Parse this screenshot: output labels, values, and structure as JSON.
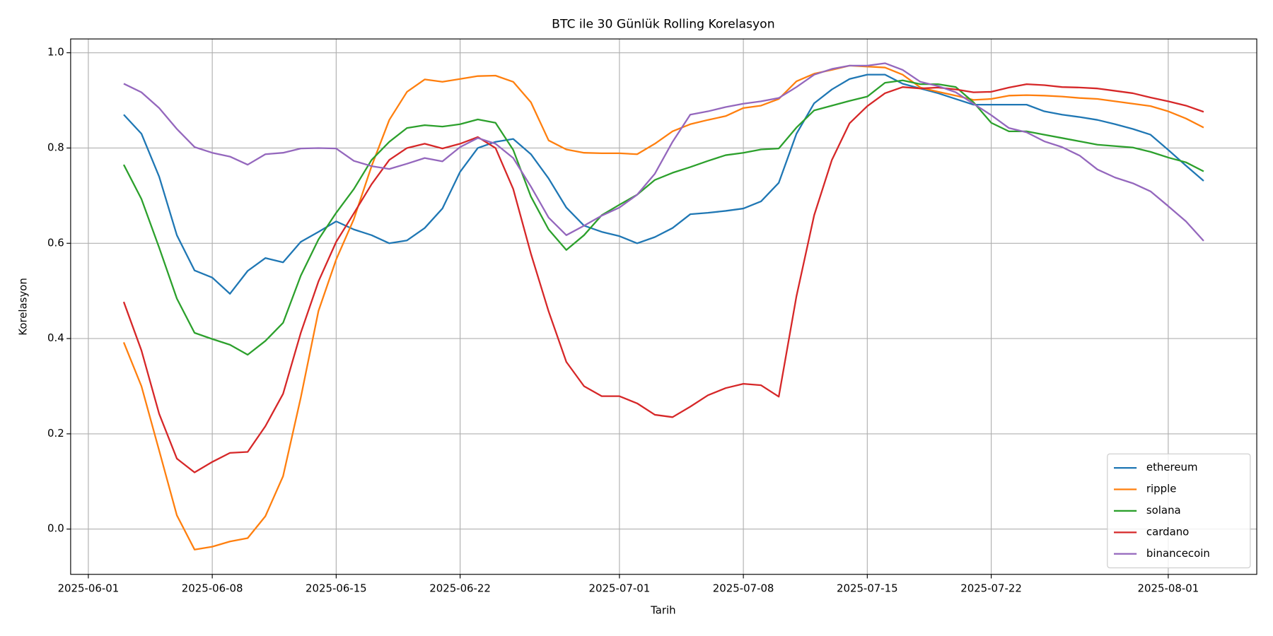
{
  "chart_data": {
    "type": "line",
    "title": "BTC ile 30 Günlük Rolling Korelasyon",
    "x_label": "Tarih",
    "y_label": "Korelasyon",
    "x": [
      "2025-06-03",
      "2025-06-04",
      "2025-06-05",
      "2025-06-06",
      "2025-06-07",
      "2025-06-08",
      "2025-06-09",
      "2025-06-10",
      "2025-06-11",
      "2025-06-12",
      "2025-06-13",
      "2025-06-14",
      "2025-06-15",
      "2025-06-16",
      "2025-06-17",
      "2025-06-18",
      "2025-06-19",
      "2025-06-20",
      "2025-06-21",
      "2025-06-22",
      "2025-06-23",
      "2025-06-24",
      "2025-06-25",
      "2025-06-26",
      "2025-06-27",
      "2025-06-28",
      "2025-06-29",
      "2025-06-30",
      "2025-07-01",
      "2025-07-02",
      "2025-07-03",
      "2025-07-04",
      "2025-07-05",
      "2025-07-06",
      "2025-07-07",
      "2025-07-08",
      "2025-07-09",
      "2025-07-10",
      "2025-07-11",
      "2025-07-12",
      "2025-07-13",
      "2025-07-14",
      "2025-07-15",
      "2025-07-16",
      "2025-07-17",
      "2025-07-18",
      "2025-07-19",
      "2025-07-20",
      "2025-07-21",
      "2025-07-22",
      "2025-07-23",
      "2025-07-24",
      "2025-07-25",
      "2025-07-26",
      "2025-07-27",
      "2025-07-28",
      "2025-07-29",
      "2025-07-30",
      "2025-07-31",
      "2025-08-01",
      "2025-08-02",
      "2025-08-03"
    ],
    "series": [
      {
        "name": "ethereum",
        "color": "#1f77b4",
        "values": [
          0.87,
          0.83,
          0.74,
          0.617,
          0.543,
          0.528,
          0.494,
          0.542,
          0.569,
          0.56,
          0.603,
          0.624,
          0.646,
          0.629,
          0.617,
          0.6,
          0.606,
          0.632,
          0.673,
          0.75,
          0.8,
          0.813,
          0.819,
          0.787,
          0.736,
          0.675,
          0.637,
          0.624,
          0.615,
          0.6,
          0.613,
          0.632,
          0.661,
          0.664,
          0.668,
          0.673,
          0.688,
          0.727,
          0.83,
          0.894,
          0.923,
          0.945,
          0.954,
          0.954,
          0.935,
          0.925,
          0.915,
          0.903,
          0.891,
          0.891,
          0.891,
          0.891,
          0.877,
          0.87,
          0.865,
          0.859,
          0.85,
          0.84,
          0.828,
          0.796,
          0.763,
          0.731
        ]
      },
      {
        "name": "ripple",
        "color": "#ff7f0e",
        "values": [
          0.392,
          0.3,
          0.165,
          0.029,
          -0.043,
          -0.037,
          -0.026,
          -0.019,
          0.027,
          0.111,
          0.276,
          0.458,
          0.566,
          0.651,
          0.762,
          0.859,
          0.918,
          0.944,
          0.939,
          0.945,
          0.951,
          0.952,
          0.939,
          0.896,
          0.816,
          0.797,
          0.79,
          0.789,
          0.789,
          0.787,
          0.809,
          0.835,
          0.85,
          0.859,
          0.867,
          0.884,
          0.889,
          0.903,
          0.94,
          0.956,
          0.964,
          0.973,
          0.971,
          0.969,
          0.954,
          0.927,
          0.918,
          0.91,
          0.901,
          0.903,
          0.91,
          0.911,
          0.91,
          0.908,
          0.905,
          0.903,
          0.898,
          0.893,
          0.888,
          0.877,
          0.862,
          0.843
        ]
      },
      {
        "name": "solana",
        "color": "#2ca02c",
        "values": [
          0.765,
          0.693,
          0.591,
          0.484,
          0.412,
          0.399,
          0.387,
          0.366,
          0.395,
          0.433,
          0.532,
          0.608,
          0.664,
          0.714,
          0.775,
          0.813,
          0.842,
          0.848,
          0.845,
          0.85,
          0.86,
          0.853,
          0.796,
          0.698,
          0.629,
          0.586,
          0.617,
          0.659,
          0.681,
          0.702,
          0.733,
          0.748,
          0.76,
          0.773,
          0.785,
          0.79,
          0.797,
          0.799,
          0.843,
          0.879,
          0.889,
          0.899,
          0.908,
          0.937,
          0.942,
          0.934,
          0.934,
          0.928,
          0.896,
          0.853,
          0.835,
          0.835,
          0.828,
          0.821,
          0.814,
          0.807,
          0.804,
          0.801,
          0.792,
          0.78,
          0.77,
          0.751
        ]
      },
      {
        "name": "cardano",
        "color": "#d62728",
        "values": [
          0.477,
          0.375,
          0.242,
          0.148,
          0.119,
          0.141,
          0.16,
          0.162,
          0.216,
          0.284,
          0.412,
          0.52,
          0.603,
          0.663,
          0.724,
          0.775,
          0.8,
          0.809,
          0.799,
          0.809,
          0.823,
          0.8,
          0.714,
          0.578,
          0.457,
          0.351,
          0.3,
          0.279,
          0.279,
          0.264,
          0.24,
          0.235,
          0.257,
          0.281,
          0.296,
          0.305,
          0.302,
          0.278,
          0.489,
          0.659,
          0.775,
          0.852,
          0.888,
          0.915,
          0.928,
          0.925,
          0.927,
          0.923,
          0.917,
          0.918,
          0.927,
          0.934,
          0.932,
          0.928,
          0.927,
          0.925,
          0.92,
          0.915,
          0.906,
          0.898,
          0.889,
          0.876
        ]
      },
      {
        "name": "binancecoin",
        "color": "#9467bd",
        "values": [
          0.935,
          0.917,
          0.884,
          0.84,
          0.802,
          0.79,
          0.782,
          0.765,
          0.787,
          0.79,
          0.799,
          0.8,
          0.799,
          0.773,
          0.762,
          0.756,
          0.767,
          0.779,
          0.772,
          0.802,
          0.821,
          0.809,
          0.779,
          0.719,
          0.654,
          0.617,
          0.637,
          0.658,
          0.675,
          0.702,
          0.746,
          0.813,
          0.87,
          0.877,
          0.886,
          0.893,
          0.898,
          0.905,
          0.928,
          0.954,
          0.966,
          0.973,
          0.973,
          0.978,
          0.964,
          0.939,
          0.93,
          0.917,
          0.893,
          0.869,
          0.842,
          0.833,
          0.814,
          0.802,
          0.784,
          0.755,
          0.738,
          0.726,
          0.709,
          0.678,
          0.646,
          0.605
        ]
      }
    ],
    "xlim": [
      "2025-05-31",
      "2025-08-06"
    ],
    "xticks": [
      "2025-06-01",
      "2025-06-08",
      "2025-06-15",
      "2025-06-22",
      "2025-07-01",
      "2025-07-08",
      "2025-07-15",
      "2025-07-22",
      "2025-08-01"
    ],
    "ylim": [
      -0.095,
      1.029
    ],
    "yticks": [
      {
        "value": 0,
        "label": "0.0"
      },
      0.2,
      0.4,
      0.6,
      0.8,
      {
        "value": 1,
        "label": "1.0"
      }
    ],
    "grid": true,
    "legend": "lower right"
  }
}
